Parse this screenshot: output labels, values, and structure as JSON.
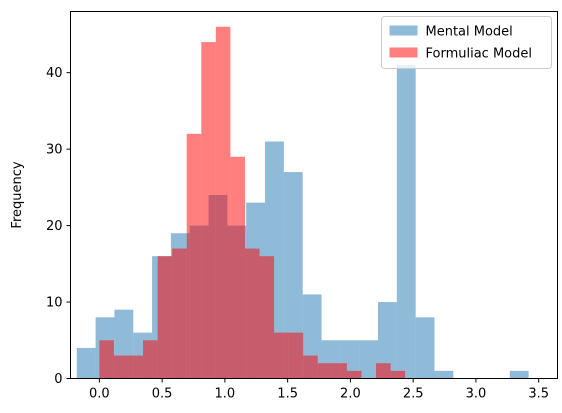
{
  "chart_data": {
    "type": "histogram",
    "title": "",
    "xlabel": "",
    "ylabel": "Frequency",
    "xlim": [
      -0.23,
      3.65
    ],
    "ylim": [
      0,
      48
    ],
    "xticks": [
      "0.0",
      "0.5",
      "1.0",
      "1.5",
      "2.0",
      "2.5",
      "3.0",
      "3.5"
    ],
    "xtick_values": [
      0.0,
      0.5,
      1.0,
      1.5,
      2.0,
      2.5,
      3.0,
      3.5
    ],
    "yticks": [
      "0",
      "10",
      "20",
      "30",
      "40"
    ],
    "ytick_values": [
      0,
      10,
      20,
      30,
      40
    ],
    "grid": false,
    "legend_position": "top-right",
    "series": [
      {
        "name": "Mental Model",
        "color": "#1f77b4",
        "alpha": 0.5,
        "bin_edges": [
          -0.18,
          -0.03,
          0.12,
          0.27,
          0.42,
          0.57,
          0.72,
          0.87,
          1.02,
          1.17,
          1.32,
          1.47,
          1.62,
          1.77,
          1.92,
          2.07,
          2.22,
          2.37,
          2.52,
          2.67,
          2.82,
          2.97,
          3.12,
          3.27,
          3.42,
          3.57
        ],
        "counts": [
          4,
          8,
          9,
          6,
          16,
          19,
          20,
          24,
          20,
          23,
          31,
          27,
          11,
          5,
          5,
          5,
          10,
          41,
          8,
          1,
          0,
          0,
          0,
          1,
          0
        ]
      },
      {
        "name": "Formuliac Model",
        "color": "#ff0000",
        "alpha": 0.5,
        "bin_edges": [
          0.0,
          0.116,
          0.232,
          0.348,
          0.464,
          0.58,
          0.696,
          0.812,
          0.928,
          1.044,
          1.16,
          1.276,
          1.392,
          1.508,
          1.624,
          1.74,
          1.856,
          1.972,
          2.088,
          2.204,
          2.32,
          2.436,
          2.552
        ],
        "counts": [
          5,
          3,
          3,
          5,
          16,
          17,
          32,
          44,
          46,
          29,
          17,
          16,
          6,
          6,
          3,
          2,
          2,
          1,
          0,
          2,
          1,
          0
        ]
      }
    ]
  }
}
